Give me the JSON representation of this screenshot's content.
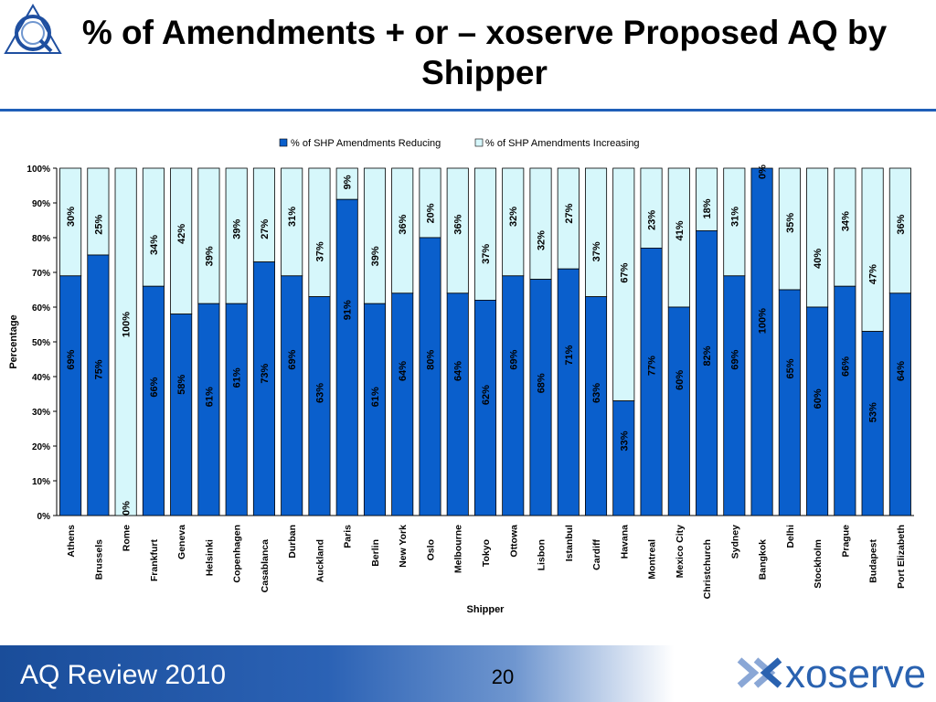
{
  "slide": {
    "title": "% of Amendments + or – xoserve Proposed AQ by Shipper",
    "footer_text": "AQ Review 2010",
    "page_number": "20",
    "brand_name": "xoserve",
    "colors": {
      "title_rule": "#1f5fb8",
      "footer_blue": "#1a4d9a",
      "brand_text": "#2a62b0",
      "brand_arrows": "#8aa7d6"
    },
    "icons": [
      "aq-logo-icon",
      "xoserve-logo-icon"
    ]
  },
  "chart_data": {
    "type": "bar",
    "stacked": true,
    "title": "",
    "xlabel": "Shipper",
    "ylabel": "Percentage",
    "ylim": [
      0,
      100
    ],
    "yticks": [
      "0%",
      "10%",
      "20%",
      "30%",
      "40%",
      "50%",
      "60%",
      "70%",
      "80%",
      "90%",
      "100%"
    ],
    "grid": false,
    "legend_position": "top-center",
    "categories": [
      "Athens",
      "Brussels",
      "Rome",
      "Frankfurt",
      "Geneva",
      "Helsinki",
      "Copenhagen",
      "Casablanca",
      "Durban",
      "Auckland",
      "Paris",
      "Berlin",
      "New York",
      "Oslo",
      "Melbourne",
      "Tokyo",
      "Ottowa",
      "Lisbon",
      "Istanbul",
      "Cardiff",
      "Havana",
      "Montreal",
      "Mexico City",
      "Christchurch",
      "Sydney",
      "Bangkok",
      "Delhi",
      "Stockholm",
      "Prague",
      "Budapest",
      "Port Elizabeth"
    ],
    "series": [
      {
        "name": "% of SHP Amendments Reducing",
        "color": "#0a5fcc",
        "values": [
          69,
          75,
          0,
          66,
          58,
          61,
          61,
          73,
          69,
          63,
          91,
          61,
          64,
          80,
          64,
          62,
          69,
          68,
          71,
          63,
          33,
          77,
          60,
          82,
          69,
          100,
          65,
          60,
          66,
          53,
          64
        ],
        "labels": [
          "69%",
          "75%",
          "0%",
          "66%",
          "58%",
          "61%",
          "61%",
          "73%",
          "69%",
          "63%",
          "91%",
          "61%",
          "64%",
          "80%",
          "64%",
          "62%",
          "69%",
          "68%",
          "71%",
          "63%",
          "33%",
          "77%",
          "60%",
          "82%",
          "69%",
          "100%",
          "65%",
          "60%",
          "66%",
          "53%",
          "64%"
        ]
      },
      {
        "name": "% of SHP Amendments Increasing",
        "color": "#d6f7fb",
        "values": [
          30,
          25,
          100,
          34,
          42,
          39,
          39,
          27,
          31,
          37,
          9,
          39,
          36,
          20,
          36,
          37,
          32,
          32,
          27,
          37,
          67,
          23,
          41,
          18,
          31,
          0,
          35,
          40,
          34,
          47,
          36
        ],
        "labels": [
          "30%",
          "25%",
          "100%",
          "34%",
          "42%",
          "39%",
          "39%",
          "27%",
          "31%",
          "37%",
          "9%",
          "39%",
          "36%",
          "20%",
          "36%",
          "37%",
          "32%",
          "32%",
          "27%",
          "37%",
          "67%",
          "23%",
          "41%",
          "18%",
          "31%",
          "0%",
          "35%",
          "40%",
          "34%",
          "47%",
          "36%"
        ]
      }
    ]
  }
}
